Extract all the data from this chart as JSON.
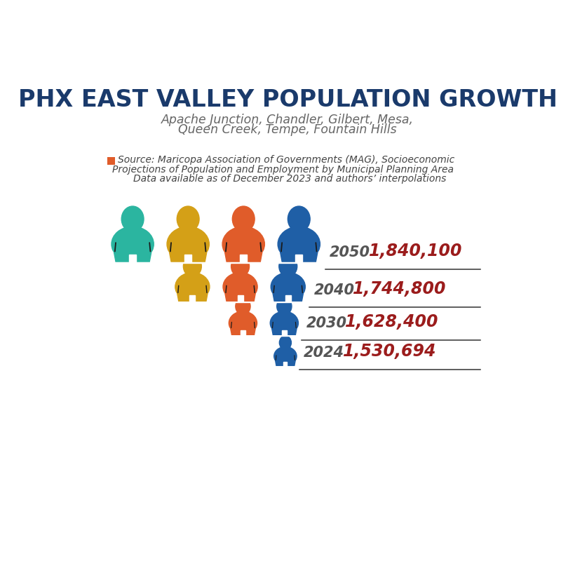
{
  "title": "PHX EAST VALLEY POPULATION GROWTH",
  "subtitle_line1": "Apache Junction, Chandler, Gilbert, Mesa,",
  "subtitle_line2": "Queen Creek, Tempe, Fountain Hills",
  "years": [
    "2050",
    "2040",
    "2030",
    "2024"
  ],
  "values": [
    "1,840,100",
    "1,744,800",
    "1,628,400",
    "1,530,694"
  ],
  "title_color": "#1a3a6b",
  "subtitle_color": "#666666",
  "year_color": "#555555",
  "value_color": "#9b1c1c",
  "line_color": "#333333",
  "source_color": "#444444",
  "source_square_color": "#e05c2a",
  "source_text_line1": "Source: Maricopa Association of Governments (MAG), Socioeconomic",
  "source_text_line2": "Projections of Population and Employment by Municipal Planning Area",
  "source_text_line3": "Data available as of December 2023 and authors’ interpolations",
  "colors": {
    "teal": "#2bb5a0",
    "gold": "#d4a017",
    "orange": "#e05c2a",
    "blue": "#1f5fa6"
  },
  "bg_color": "white"
}
